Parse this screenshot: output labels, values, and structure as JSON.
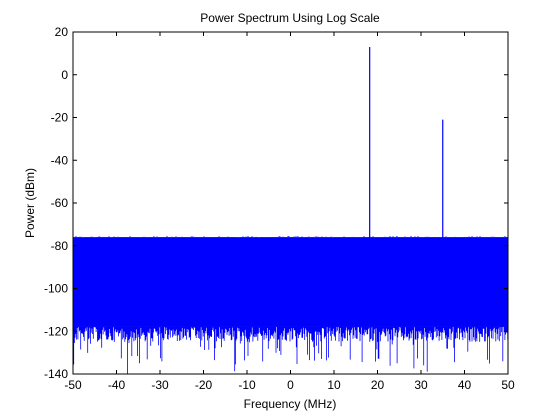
{
  "chart_data": {
    "type": "line",
    "title": "Power Spectrum Using Log Scale",
    "xlabel": "Frequency (MHz)",
    "ylabel": "Power (dBm)",
    "xlim": [
      -50,
      50
    ],
    "ylim": [
      -140,
      20
    ],
    "xticks": [
      -50,
      -40,
      -30,
      -20,
      -10,
      0,
      10,
      20,
      30,
      40,
      50
    ],
    "yticks": [
      20,
      0,
      -20,
      -40,
      -60,
      -80,
      -100,
      -120,
      -140
    ],
    "grid": false,
    "line_color": "#0000ff",
    "noise_floor": {
      "x_range": [
        -50,
        50
      ],
      "upper_edge_dbm": -77,
      "dense_bottom_dbm": -118,
      "lowest_spikes_dbm": -140
    },
    "series": [
      {
        "values": [
          {
            "x": 18.2,
            "y": 13
          },
          {
            "x": 35.0,
            "y": -21
          }
        ]
      }
    ]
  }
}
